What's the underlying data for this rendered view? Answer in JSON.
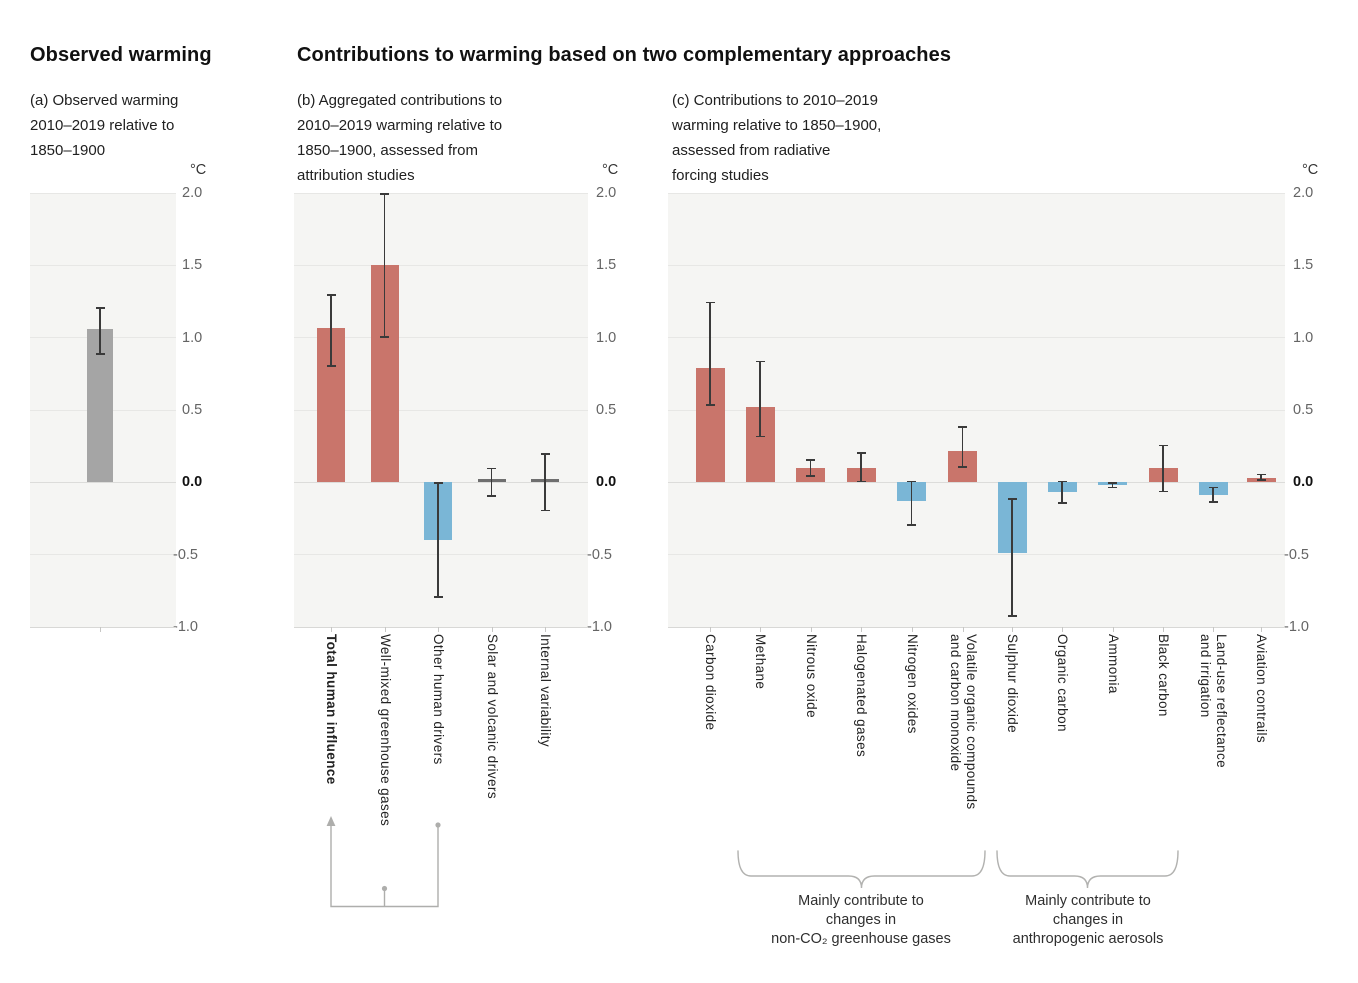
{
  "page": {
    "heading_left": "Observed warming",
    "heading_right": "Contributions to warming based on two complementary approaches"
  },
  "colors": {
    "red": "#c9756b",
    "blue": "#7ab6d6",
    "gray": "#a5a5a5",
    "neutral": "#6f6f6f"
  },
  "chart_data": [
    {
      "type": "bar",
      "panel": "a",
      "subtitle": "(a) Observed warming\n2010–2019 relative to\n1850–1900",
      "unit": "°C",
      "ylim": [
        -1.0,
        2.0
      ],
      "yticks": [
        2.0,
        1.5,
        1.0,
        0.5,
        0.0,
        -0.5,
        -1.0
      ],
      "grid": true,
      "legend": "none",
      "bars": [
        {
          "lines": [],
          "name": "observed-warming",
          "value": 1.06,
          "err_lo": 0.88,
          "err_hi": 1.21,
          "color_key": "gray",
          "bold": false
        }
      ]
    },
    {
      "type": "bar",
      "panel": "b",
      "subtitle": "(b) Aggregated contributions to\n2010–2019 warming relative to\n1850–1900, assessed from\nattribution studies",
      "unit": "°C",
      "ylim": [
        -1.0,
        2.0
      ],
      "yticks": [
        2.0,
        1.5,
        1.0,
        0.5,
        0.0,
        -0.5,
        -1.0
      ],
      "grid": true,
      "bars": [
        {
          "lines": [
            "Total human influence"
          ],
          "name": "total-human-influence",
          "value": 1.07,
          "err_lo": 0.8,
          "err_hi": 1.3,
          "color_key": "red",
          "bold": true
        },
        {
          "lines": [
            "Well-mixed greenhouse gases"
          ],
          "name": "well-mixed-greenhouse-gases",
          "value": 1.5,
          "err_lo": 1.0,
          "err_hi": 2.0,
          "color_key": "red",
          "bold": false
        },
        {
          "lines": [
            "Other human drivers"
          ],
          "name": "other-human-drivers",
          "value": -0.4,
          "err_lo": -0.8,
          "err_hi": 0.0,
          "color_key": "blue",
          "bold": false
        },
        {
          "lines": [
            "Solar and volcanic drivers"
          ],
          "name": "solar-and-volcanic-drivers",
          "value": 0.02,
          "err_lo": -0.1,
          "err_hi": 0.1,
          "color_key": "neutral",
          "bold": false
        },
        {
          "lines": [
            "Internal variability"
          ],
          "name": "internal-variability",
          "value": 0.02,
          "err_lo": -0.2,
          "err_hi": 0.2,
          "color_key": "neutral",
          "bold": false
        }
      ]
    },
    {
      "type": "bar",
      "panel": "c",
      "subtitle": "(c) Contributions to 2010–2019\nwarming relative to 1850–1900,\nassessed from radiative\nforcing studies",
      "unit": "°C",
      "ylim": [
        -1.0,
        2.0
      ],
      "yticks": [
        2.0,
        1.5,
        1.0,
        0.5,
        0.0,
        -0.5,
        -1.0
      ],
      "grid": true,
      "bars": [
        {
          "lines": [
            "Carbon dioxide"
          ],
          "name": "carbon-dioxide",
          "value": 0.79,
          "err_lo": 0.53,
          "err_hi": 1.25,
          "color_key": "red",
          "bold": false
        },
        {
          "lines": [
            "Methane"
          ],
          "name": "methane",
          "value": 0.52,
          "err_lo": 0.31,
          "err_hi": 0.84,
          "color_key": "red",
          "bold": false
        },
        {
          "lines": [
            "Nitrous oxide"
          ],
          "name": "nitrous-oxide",
          "value": 0.1,
          "err_lo": 0.04,
          "err_hi": 0.16,
          "color_key": "red",
          "bold": false
        },
        {
          "lines": [
            "Halogenated gases"
          ],
          "name": "halogenated-gases",
          "value": 0.1,
          "err_lo": 0.0,
          "err_hi": 0.21,
          "color_key": "red",
          "bold": false
        },
        {
          "lines": [
            "Nitrogen oxides"
          ],
          "name": "nitrogen-oxides",
          "value": -0.13,
          "err_lo": -0.3,
          "err_hi": 0.01,
          "color_key": "blue",
          "bold": false
        },
        {
          "lines": [
            "Volatile organic compounds",
            "and carbon monoxide"
          ],
          "name": "volatile-organic-compounds-and-carbon-monoxide",
          "value": 0.22,
          "err_lo": 0.1,
          "err_hi": 0.39,
          "color_key": "red",
          "bold": false
        },
        {
          "lines": [
            "Sulphur dioxide"
          ],
          "name": "sulphur-dioxide",
          "value": -0.49,
          "err_lo": -0.93,
          "err_hi": -0.11,
          "color_key": "blue",
          "bold": false
        },
        {
          "lines": [
            "Organic carbon"
          ],
          "name": "organic-carbon",
          "value": -0.07,
          "err_lo": -0.15,
          "err_hi": 0.01,
          "color_key": "blue",
          "bold": false
        },
        {
          "lines": [
            "Ammonia"
          ],
          "name": "ammonia",
          "value": -0.02,
          "err_lo": -0.04,
          "err_hi": 0.0,
          "color_key": "blue",
          "bold": false
        },
        {
          "lines": [
            "Black carbon"
          ],
          "name": "black-carbon",
          "value": 0.1,
          "err_lo": -0.07,
          "err_hi": 0.26,
          "color_key": "red",
          "bold": false
        },
        {
          "lines": [
            "Land-use reflectance",
            "and irrigation"
          ],
          "name": "land-use-reflectance-and-irrigation",
          "value": -0.09,
          "err_lo": -0.14,
          "err_hi": -0.03,
          "color_key": "blue",
          "bold": false
        },
        {
          "lines": [
            "Aviation contrails"
          ],
          "name": "aviation-contrails",
          "value": 0.03,
          "err_lo": 0.01,
          "err_hi": 0.06,
          "color_key": "red",
          "bold": false
        }
      ],
      "group_annotations": [
        {
          "label": "Mainly contribute to\nchanges in\nnon-CO₂ greenhouse gases",
          "from_bar": "Methane",
          "to_bar": "Volatile organic compounds and carbon monoxide"
        },
        {
          "label": "Mainly contribute to\nchanges in\nanthropogenic aerosols",
          "from_bar": "Sulphur dioxide",
          "to_bar": "Black carbon"
        }
      ]
    }
  ]
}
